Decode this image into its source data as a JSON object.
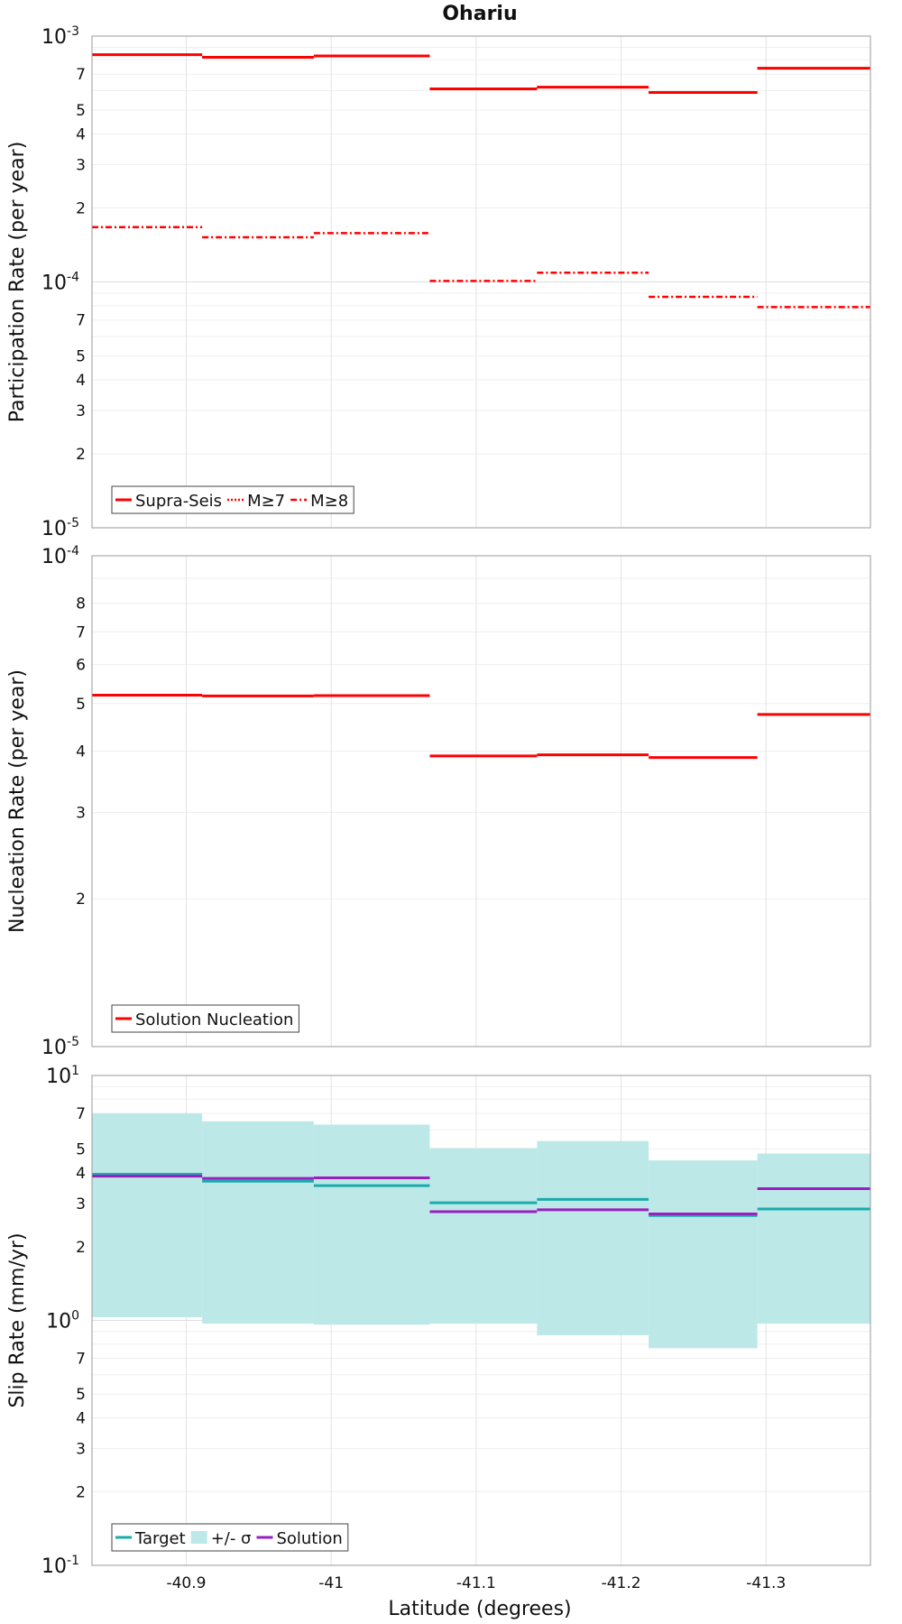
{
  "title": "Ohariu",
  "xlabel": "Latitude (degrees)",
  "x_ticks": [
    "-40.9",
    "-41",
    "-41.1",
    "-41.2",
    "-41.3"
  ],
  "chart_data": [
    {
      "type": "line",
      "title": "Ohariu",
      "xlabel": "",
      "ylabel": "Participation Rate (per year)",
      "yscale": "log",
      "xlim": [
        -40.835,
        -41.372
      ],
      "ylim": [
        1e-05,
        0.001
      ],
      "x_ticks": [
        -40.9,
        -41,
        -41.1,
        -41.2,
        -41.3
      ],
      "y_decades": [
        {
          "base": "10",
          "exp": "-3"
        },
        {
          "base": "10",
          "exp": "-4"
        },
        {
          "base": "10",
          "exp": "-5"
        }
      ],
      "y_minor_labels": [
        {
          "value": 0.0007,
          "label": "7"
        },
        {
          "value": 0.0005,
          "label": "5"
        },
        {
          "value": 0.0004,
          "label": "4"
        },
        {
          "value": 0.0003,
          "label": "3"
        },
        {
          "value": 0.0002,
          "label": "2"
        },
        {
          "value": 7e-05,
          "label": "7"
        },
        {
          "value": 5e-05,
          "label": "5"
        },
        {
          "value": 4e-05,
          "label": "4"
        },
        {
          "value": 3e-05,
          "label": "3"
        },
        {
          "value": 2e-05,
          "label": "2"
        }
      ],
      "grid": true,
      "legend_position": "bottom-left",
      "series": [
        {
          "name": "Supra-Seis",
          "style": "solid",
          "color": "#ff0000",
          "bins": [
            [
              -40.835,
              -40.911,
              0.00084
            ],
            [
              -40.911,
              -40.988,
              0.00082
            ],
            [
              -40.988,
              -41.068,
              0.00083
            ],
            [
              -41.068,
              -41.142,
              0.00061
            ],
            [
              -41.142,
              -41.219,
              0.00062
            ],
            [
              -41.219,
              -41.294,
              0.00059
            ],
            [
              -41.294,
              -41.372,
              0.00074
            ]
          ]
        },
        {
          "name": "M≥7",
          "style": "dotted",
          "color": "#ff0000",
          "bins": [
            [
              -40.835,
              -40.911,
              0.00084
            ],
            [
              -40.911,
              -40.988,
              0.00082
            ],
            [
              -40.988,
              -41.068,
              0.00083
            ],
            [
              -41.068,
              -41.142,
              0.00061
            ],
            [
              -41.142,
              -41.219,
              0.00062
            ],
            [
              -41.219,
              -41.294,
              0.00059
            ],
            [
              -41.294,
              -41.372,
              0.00074
            ]
          ]
        },
        {
          "name": "M≥8",
          "style": "dashdot",
          "color": "#ff0000",
          "bins": [
            [
              -40.835,
              -40.911,
              0.000167
            ],
            [
              -40.911,
              -40.988,
              0.000152
            ],
            [
              -40.988,
              -41.068,
              0.000158
            ],
            [
              -41.068,
              -41.142,
              0.000101
            ],
            [
              -41.142,
              -41.219,
              0.000109
            ],
            [
              -41.219,
              -41.294,
              8.7e-05
            ],
            [
              -41.294,
              -41.372,
              7.9e-05
            ]
          ]
        }
      ]
    },
    {
      "type": "line",
      "xlabel": "",
      "ylabel": "Nucleation Rate (per year)",
      "yscale": "log",
      "xlim": [
        -40.835,
        -41.372
      ],
      "ylim": [
        1e-05,
        0.0001
      ],
      "x_ticks": [
        -40.9,
        -41,
        -41.1,
        -41.2,
        -41.3
      ],
      "y_decades": [
        {
          "base": "10",
          "exp": "-4"
        },
        {
          "base": "10",
          "exp": "-5"
        }
      ],
      "y_minor_labels": [
        {
          "value": 8e-05,
          "label": "8"
        },
        {
          "value": 7e-05,
          "label": "7"
        },
        {
          "value": 6e-05,
          "label": "6"
        },
        {
          "value": 5e-05,
          "label": "5"
        },
        {
          "value": 4e-05,
          "label": "4"
        },
        {
          "value": 3e-05,
          "label": "3"
        },
        {
          "value": 2e-05,
          "label": "2"
        }
      ],
      "grid": true,
      "legend_position": "bottom-left",
      "series": [
        {
          "name": "Solution Nucleation",
          "style": "solid",
          "color": "#ff0000",
          "bins": [
            [
              -40.835,
              -40.911,
              5.2e-05
            ],
            [
              -40.911,
              -40.988,
              5.18e-05
            ],
            [
              -40.988,
              -41.068,
              5.19e-05
            ],
            [
              -41.068,
              -41.142,
              3.91e-05
            ],
            [
              -41.142,
              -41.219,
              3.93e-05
            ],
            [
              -41.219,
              -41.294,
              3.88e-05
            ],
            [
              -41.294,
              -41.372,
              4.75e-05
            ]
          ]
        }
      ]
    },
    {
      "type": "line",
      "xlabel": "Latitude (degrees)",
      "ylabel": "Slip Rate (mm/yr)",
      "yscale": "log",
      "xlim": [
        -40.835,
        -41.372
      ],
      "ylim": [
        0.1,
        10
      ],
      "x_ticks": [
        -40.9,
        -41,
        -41.1,
        -41.2,
        -41.3
      ],
      "y_decades": [
        {
          "base": "10",
          "exp": "1"
        },
        {
          "base": "10",
          "exp": "0"
        },
        {
          "base": "10",
          "exp": "-1"
        }
      ],
      "y_minor_labels": [
        {
          "value": 7,
          "label": "7"
        },
        {
          "value": 5,
          "label": "5"
        },
        {
          "value": 4,
          "label": "4"
        },
        {
          "value": 3,
          "label": "3"
        },
        {
          "value": 2,
          "label": "2"
        },
        {
          "value": 0.7,
          "label": "7"
        },
        {
          "value": 0.5,
          "label": "5"
        },
        {
          "value": 0.4,
          "label": "4"
        },
        {
          "value": 0.3,
          "label": "3"
        },
        {
          "value": 0.2,
          "label": "2"
        }
      ],
      "grid": true,
      "legend_position": "bottom-left",
      "band": {
        "name": "+/- σ",
        "color": "#bde8e8",
        "bins": [
          [
            -40.835,
            -40.911,
            1.03,
            7.0
          ],
          [
            -40.911,
            -40.988,
            0.97,
            6.5
          ],
          [
            -40.988,
            -41.068,
            0.96,
            6.3
          ],
          [
            -41.068,
            -41.142,
            0.97,
            5.05
          ],
          [
            -41.142,
            -41.219,
            0.87,
            5.4
          ],
          [
            -41.219,
            -41.294,
            0.77,
            4.5
          ],
          [
            -41.294,
            -41.372,
            0.97,
            4.8
          ]
        ]
      },
      "series": [
        {
          "name": "Target",
          "style": "solid",
          "color": "#1aabab",
          "bins": [
            [
              -40.835,
              -40.911,
              3.95
            ],
            [
              -40.911,
              -40.988,
              3.7
            ],
            [
              -40.988,
              -41.068,
              3.55
            ],
            [
              -41.068,
              -41.142,
              3.02
            ],
            [
              -41.142,
              -41.219,
              3.12
            ],
            [
              -41.219,
              -41.294,
              2.68
            ],
            [
              -41.294,
              -41.372,
              2.85
            ]
          ]
        },
        {
          "name": "Solution",
          "style": "solid",
          "color": "#9a1fc0",
          "bins": [
            [
              -40.835,
              -40.911,
              3.88
            ],
            [
              -40.911,
              -40.988,
              3.8
            ],
            [
              -40.988,
              -41.068,
              3.82
            ],
            [
              -41.068,
              -41.142,
              2.78
            ],
            [
              -41.142,
              -41.219,
              2.83
            ],
            [
              -41.219,
              -41.294,
              2.72
            ],
            [
              -41.294,
              -41.372,
              3.45
            ]
          ]
        }
      ]
    }
  ]
}
